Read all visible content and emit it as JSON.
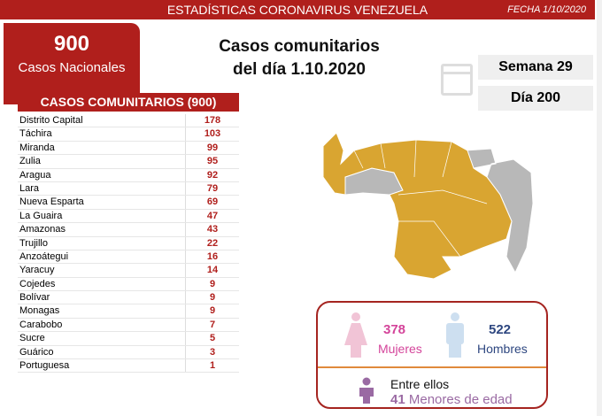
{
  "header": {
    "title": "ESTADÍSTICAS CORONAVIRUS VENEZUELA",
    "date": "FECHA 1/10/2020"
  },
  "national": {
    "count": "900",
    "label": "Casos Nacionales"
  },
  "main_title": {
    "line1": "Casos comunitarios",
    "line2": "del día 1.10.2020"
  },
  "calendar": {
    "week": "Semana 29",
    "day": "Día 200",
    "icon": "calendar-icon"
  },
  "table": {
    "header": "CASOS COMUNITARIOS (900)",
    "rows": [
      [
        "Distrito Capital",
        "178"
      ],
      [
        "Táchira",
        "103"
      ],
      [
        "Miranda",
        "99"
      ],
      [
        "Zulia",
        "95"
      ],
      [
        "Aragua",
        "92"
      ],
      [
        "Lara",
        "79"
      ],
      [
        "Nueva Esparta",
        "69"
      ],
      [
        "La Guaira",
        "47"
      ],
      [
        "Amazonas",
        "43"
      ],
      [
        "Trujillo",
        "22"
      ],
      [
        "Anzoátegui",
        "16"
      ],
      [
        "Yaracuy",
        "14"
      ],
      [
        "Cojedes",
        "9"
      ],
      [
        "Bolívar",
        "9"
      ],
      [
        "Monagas",
        "9"
      ],
      [
        "Carabobo",
        "7"
      ],
      [
        "Sucre",
        "5"
      ],
      [
        "Guárico",
        "3"
      ],
      [
        "Portuguesa",
        "1"
      ]
    ]
  },
  "gender": {
    "women_count": "378",
    "women_label": "Mujeres",
    "men_count": "522",
    "men_label": "Hombres",
    "minors_intro": "Entre ellos",
    "minors_count": "41",
    "minors_label": "Menores de edad"
  },
  "colors": {
    "brand": "#b01f1c",
    "affected": "#d9a531",
    "unaffected": "#b8b8b8",
    "women": "#d4449a",
    "men": "#2e4780",
    "minors": "#9a6aa3"
  }
}
